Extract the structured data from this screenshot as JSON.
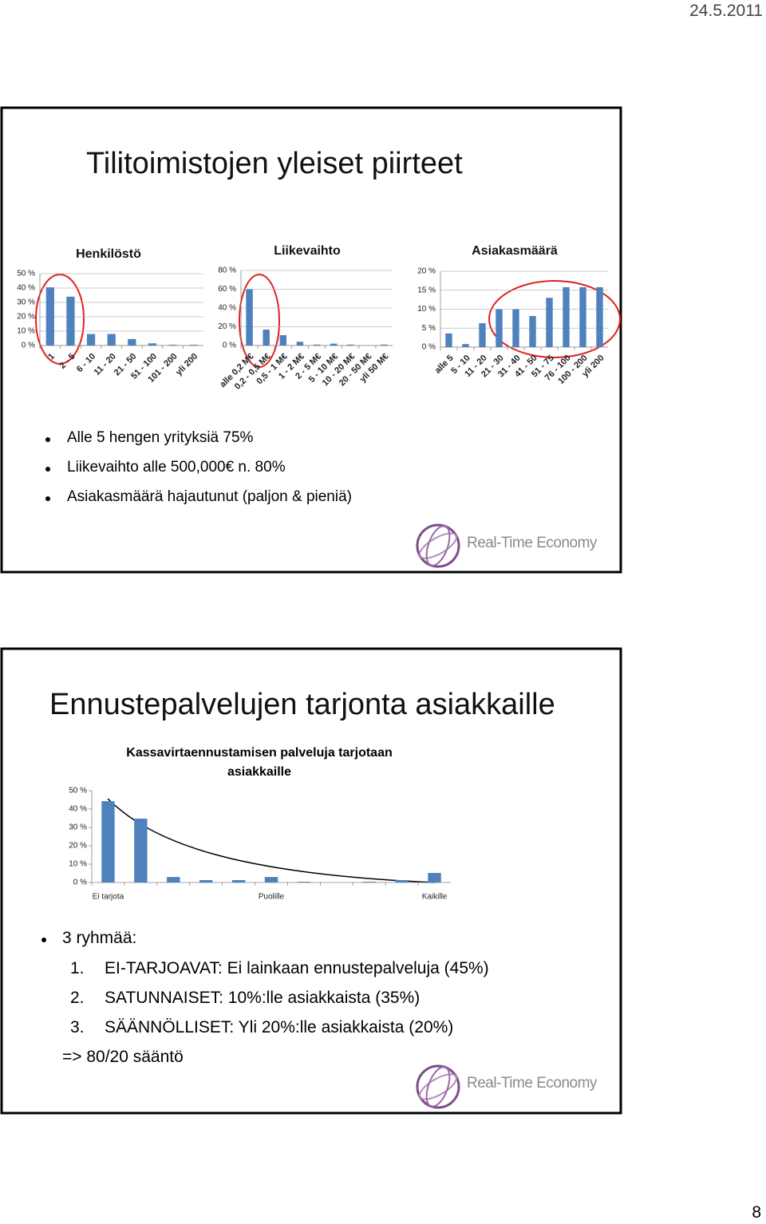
{
  "document": {
    "date": "24.5.2011",
    "page_number": "8",
    "slides": [
      {
        "title": "Tilitoimistojen yleiset piirteet",
        "bullets": [
          "Alle 5 hengen yrityksiä 75%",
          "Liikevaihto alle 500,000€ n. 80%",
          "Asiakasmäärä hajautunut (paljon & pieniä)"
        ],
        "logo": "Real-Time Economy"
      },
      {
        "title": "Ennustepalvelujen tarjonta asiakkaille",
        "bullets": [
          "3 ryhmää:"
        ],
        "list": [
          {
            "number": "1.",
            "text": "EI-TARJOAVAT: Ei lainkaan ennustepalveluja (45%)"
          },
          {
            "number": "2.",
            "text": "SATUNNAISET: 10%:lle asiakkaista (35%)"
          },
          {
            "number": "3.",
            "text": "SÄÄNNÖLLISET: Yli 20%:lle asiakkaista (20%)"
          }
        ],
        "conclusion": "=> 80/20 sääntö",
        "logo": "Real-Time Economy"
      }
    ]
  },
  "chart_data": [
    {
      "type": "bar",
      "title": "Henkilöstö",
      "categories": [
        "1",
        "2 - 5",
        "6 - 10",
        "11 - 20",
        "21 - 50",
        "51 - 100",
        "101 - 200",
        "yli 200"
      ],
      "values": [
        40.5,
        34,
        8,
        8,
        4.5,
        1.5,
        0.5,
        0.5
      ],
      "color": "#4f81bd",
      "ylim": [
        0,
        50
      ],
      "yticks": [
        {
          "value": 0,
          "label": "0 %"
        },
        {
          "value": 10,
          "label": "10 %"
        },
        {
          "value": 20,
          "label": "20 %"
        },
        {
          "value": 30,
          "label": "30 %"
        },
        {
          "value": 40,
          "label": "40 %"
        },
        {
          "value": 50,
          "label": "50 %"
        }
      ],
      "grid": true
    },
    {
      "type": "bar",
      "title": "Liikevaihto",
      "categories": [
        "alle 0,2 M€",
        "0,2 - 0,5 M€",
        "0,5 - 1 M€",
        "1 - 2 M€",
        "2 - 5 M€",
        "5 - 10 M€",
        "10 - 20 M€",
        "20 - 50 M€",
        "yli 50 M€"
      ],
      "values": [
        60,
        17,
        11,
        4,
        1,
        2,
        1,
        0,
        1
      ],
      "color": "#4f81bd",
      "ylim": [
        0,
        80
      ],
      "yticks": [
        {
          "value": 0,
          "label": "0 %"
        },
        {
          "value": 20,
          "label": "20 %"
        },
        {
          "value": 40,
          "label": "40 %"
        },
        {
          "value": 60,
          "label": "60 %"
        },
        {
          "value": 80,
          "label": "80 %"
        }
      ],
      "grid": true
    },
    {
      "type": "bar",
      "title": "Asiakasmäärä",
      "categories": [
        "alle 5",
        "5 - 10",
        "11 - 20",
        "21 - 30",
        "31 - 40",
        "41 - 50",
        "51 - 75",
        "76 - 100",
        "100 - 200",
        "yli 200"
      ],
      "values": [
        3.6,
        0.8,
        6.3,
        10,
        10,
        8.2,
        13,
        15.8,
        15.8,
        15.8
      ],
      "color": "#4f81bd",
      "ylim": [
        0,
        20
      ],
      "yticks": [
        {
          "value": 0,
          "label": "0 %"
        },
        {
          "value": 5,
          "label": "5 %"
        },
        {
          "value": 10,
          "label": "10 %"
        },
        {
          "value": 15,
          "label": "15 %"
        },
        {
          "value": 20,
          "label": "20 %"
        }
      ],
      "grid": true
    },
    {
      "type": "bar",
      "title": "Kassavirtaennustamisen palveluja tarjotaan asiakkaille",
      "categories": [
        "Ei tarjota",
        null,
        null,
        null,
        null,
        "Puolille",
        null,
        null,
        null,
        null,
        "Kaikille"
      ],
      "values": [
        44.3,
        34.8,
        3,
        1.3,
        1.3,
        3,
        0.4,
        0,
        0.4,
        1.3,
        5.2
      ],
      "color": "#4f81bd",
      "ylim": [
        0,
        50
      ],
      "yticks": [
        {
          "value": 0,
          "label": "0 %"
        },
        {
          "value": 10,
          "label": "10 %"
        },
        {
          "value": 20,
          "label": "20 %"
        },
        {
          "value": 30,
          "label": "30 %"
        },
        {
          "value": 40,
          "label": "40 %"
        },
        {
          "value": 50,
          "label": "50 %"
        }
      ],
      "grid": false
    }
  ]
}
